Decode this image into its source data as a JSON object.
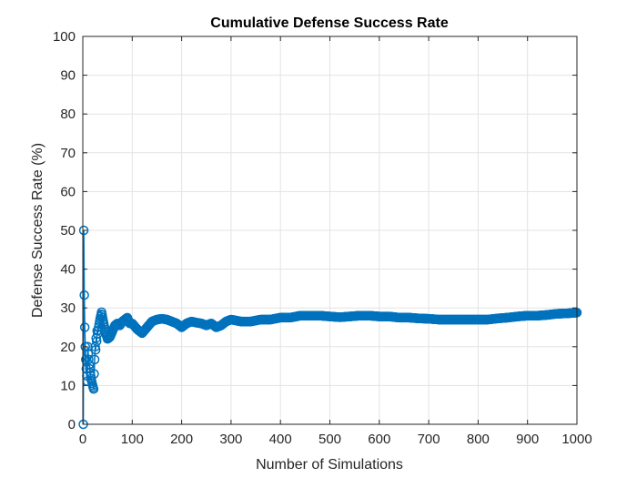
{
  "chart_data": {
    "type": "line",
    "title": "Cumulative Defense Success Rate",
    "xlabel": "Number of Simulations",
    "ylabel": "Defense Success Rate (%)",
    "xlim": [
      0,
      1000
    ],
    "ylim": [
      0,
      100
    ],
    "xticks": [
      0,
      100,
      200,
      300,
      400,
      500,
      600,
      700,
      800,
      900,
      1000
    ],
    "yticks": [
      0,
      10,
      20,
      30,
      40,
      50,
      60,
      70,
      80,
      90,
      100
    ],
    "grid": true,
    "marker": "circle",
    "color": "#0072BD",
    "series": [
      {
        "x": [
          1,
          2,
          3,
          4,
          5,
          6,
          7,
          8,
          9,
          10,
          11,
          12,
          13,
          14,
          15,
          16,
          17,
          18,
          19,
          20,
          21,
          22,
          23,
          24,
          25,
          26,
          27,
          28,
          29,
          30,
          32,
          34,
          36,
          38,
          40,
          42,
          44,
          46,
          48,
          50,
          55,
          60,
          65,
          70,
          75,
          80,
          85,
          90,
          95,
          100,
          110,
          120,
          130,
          140,
          150,
          160,
          170,
          180,
          190,
          200,
          210,
          220,
          230,
          240,
          250,
          260,
          270,
          280,
          290,
          300,
          320,
          340,
          360,
          380,
          400,
          420,
          440,
          460,
          480,
          500,
          520,
          540,
          560,
          580,
          600,
          620,
          640,
          660,
          680,
          700,
          720,
          740,
          760,
          780,
          800,
          820,
          840,
          860,
          880,
          900,
          920,
          940,
          960,
          980,
          1000
        ],
        "y": [
          0,
          50,
          33.3,
          25,
          20,
          16.7,
          14.3,
          12.5,
          11.1,
          20,
          18.2,
          16.7,
          15.4,
          14.3,
          13.3,
          12.5,
          11.8,
          11.1,
          10.5,
          10,
          9.5,
          9.1,
          13,
          16.7,
          20,
          19.2,
          22.2,
          21.4,
          24.1,
          23.3,
          25,
          26.5,
          27.8,
          28.9,
          27.5,
          26.2,
          25,
          23.9,
          22.9,
          22,
          22.5,
          24,
          25.5,
          26,
          25.5,
          26.5,
          27,
          27.5,
          26,
          26,
          24.5,
          23.5,
          25,
          26.5,
          27,
          27.2,
          27,
          26.5,
          26,
          25,
          26,
          26.5,
          26.2,
          26,
          25.5,
          26,
          25,
          25.5,
          26.5,
          27,
          26.5,
          26.5,
          27,
          27,
          27.5,
          27.5,
          28,
          28,
          28,
          27.8,
          27.6,
          27.8,
          28,
          28,
          27.8,
          27.8,
          27.5,
          27.5,
          27.3,
          27.2,
          27,
          27,
          27,
          27,
          27,
          27,
          27.3,
          27.5,
          27.8,
          28,
          28,
          28.2,
          28.5,
          28.6,
          28.8
        ]
      }
    ]
  }
}
